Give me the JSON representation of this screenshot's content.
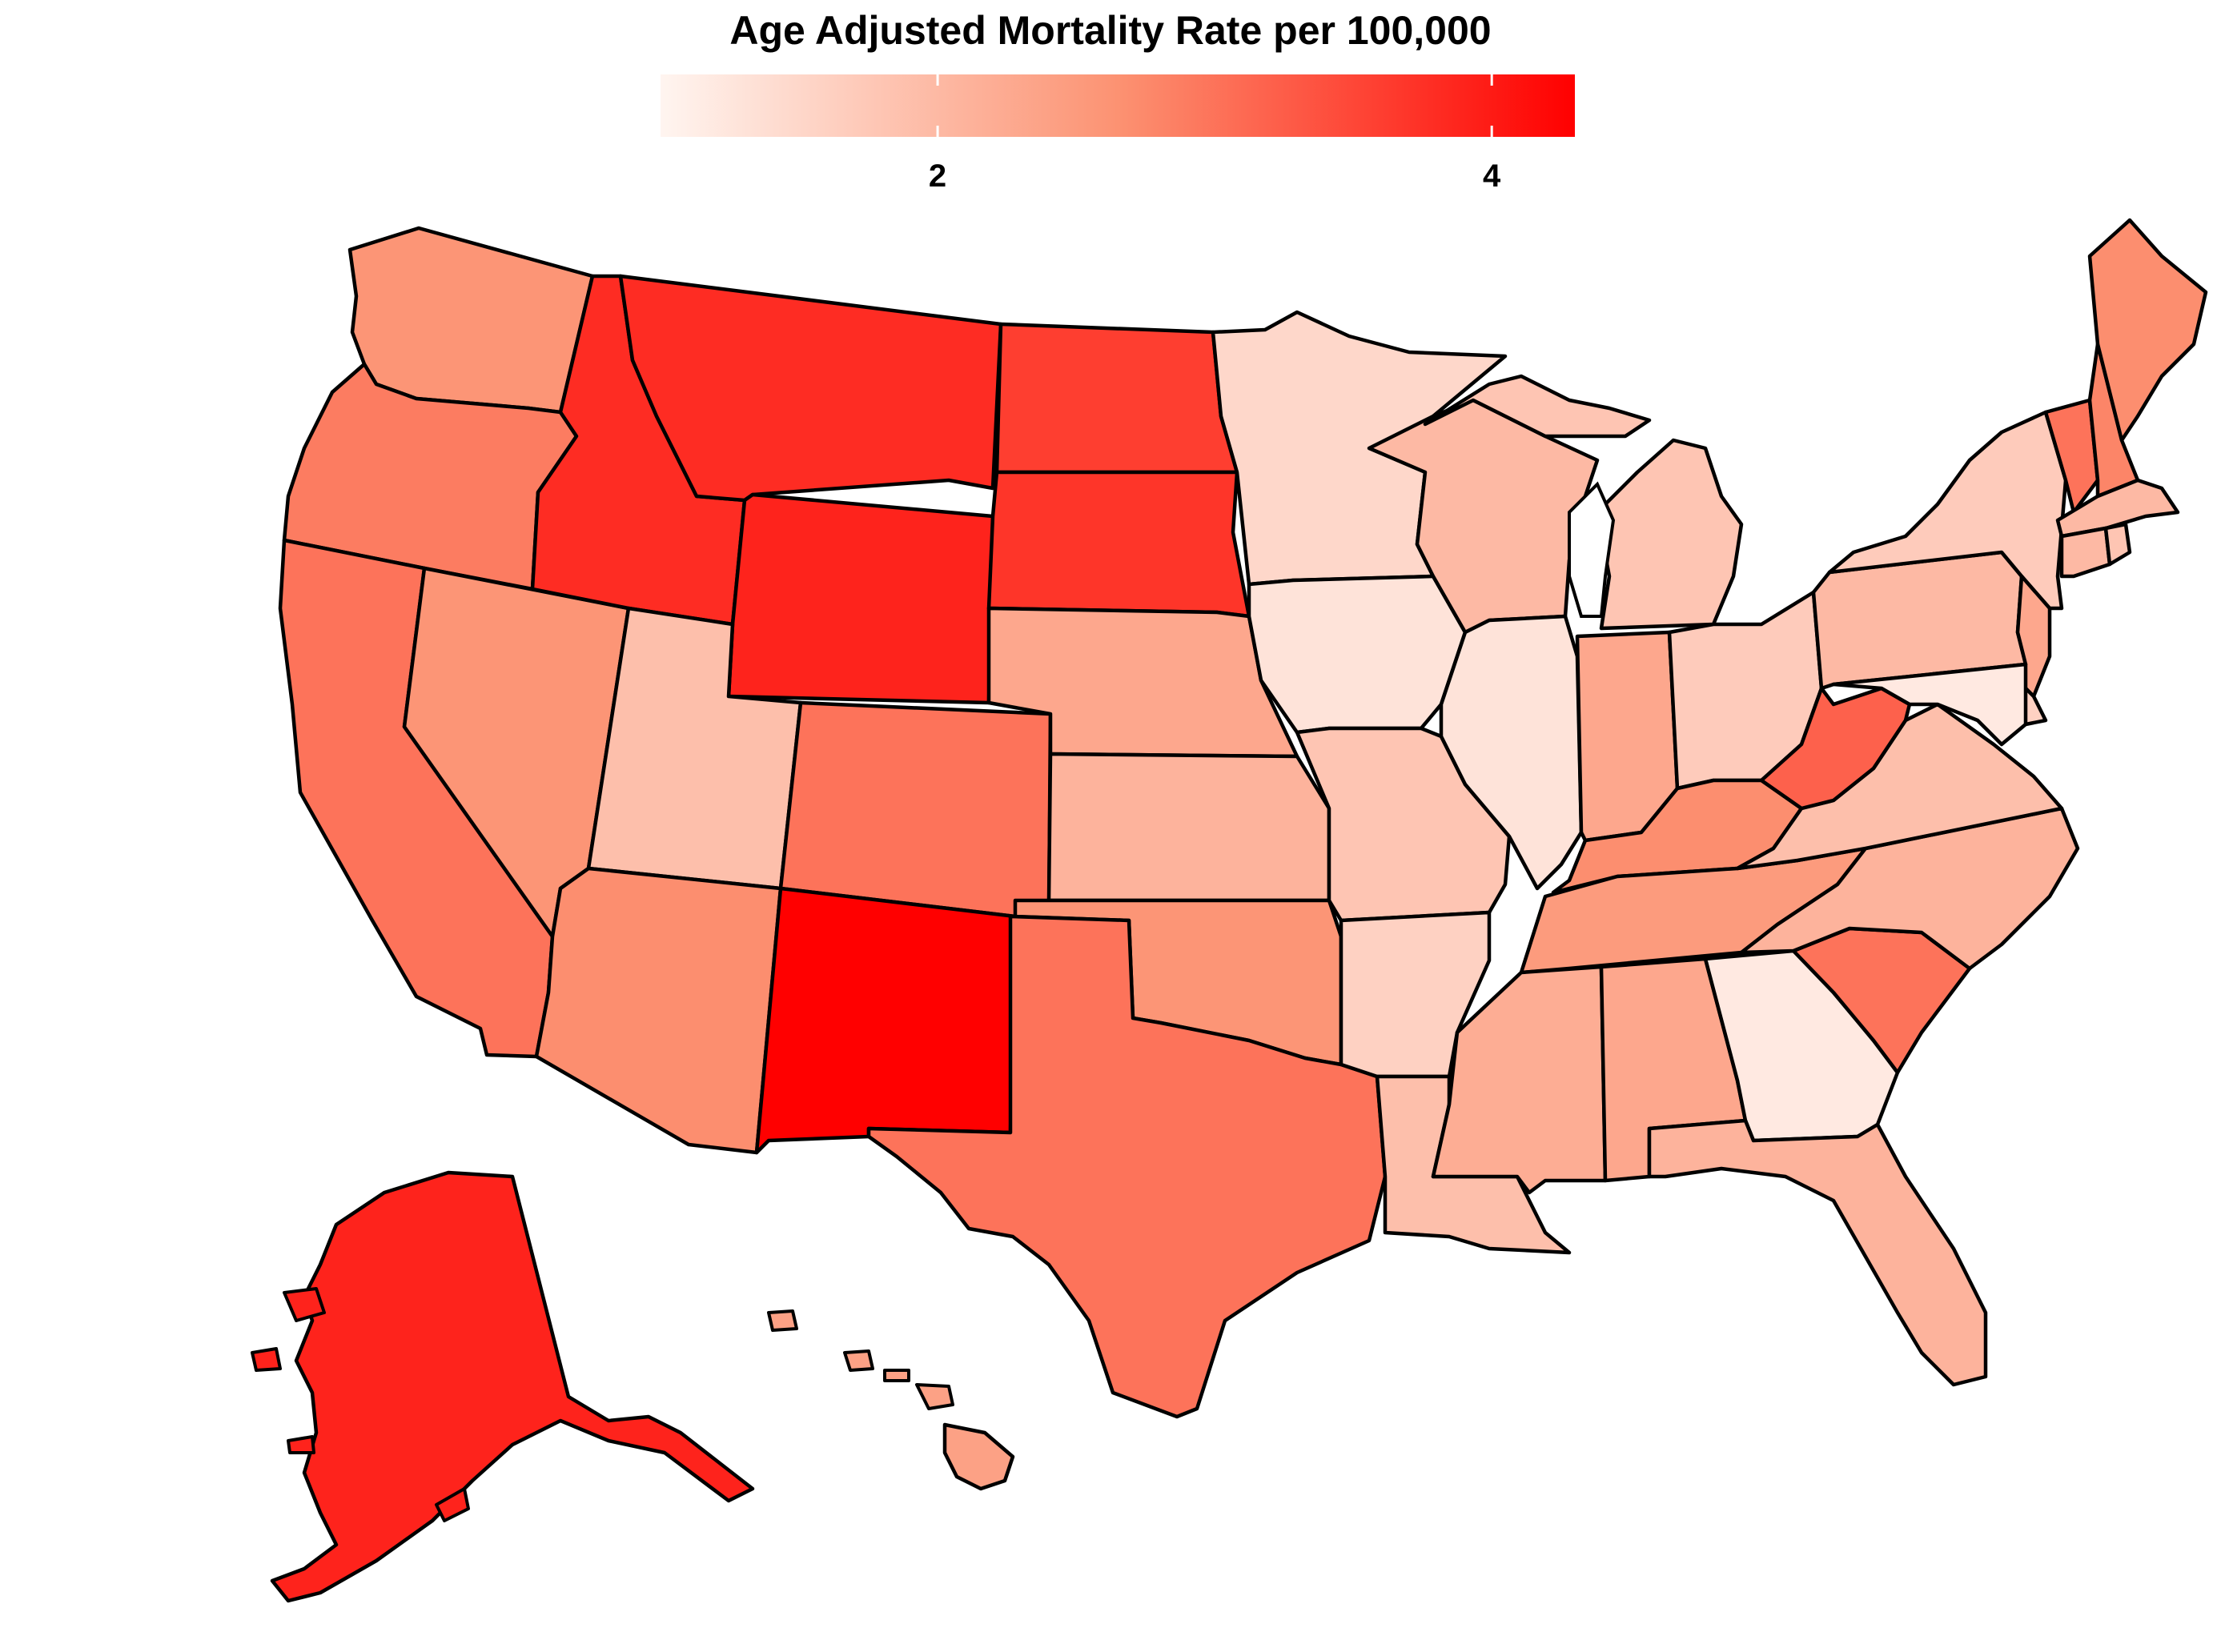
{
  "legend": {
    "title": "Age Adjusted Mortality Rate per 100,000",
    "min_value": 1.0,
    "max_value": 4.3,
    "color_low": "#fff5f0",
    "color_mid": "#fc9272",
    "color_high": "#ff0000",
    "ticks": [
      {
        "value": 2,
        "label": "2"
      },
      {
        "value": 4,
        "label": "4"
      }
    ]
  },
  "map_data": {
    "type": "choropleth",
    "region": "United States",
    "variable": "Age Adjusted Mortality Rate per 100,000",
    "states": [
      {
        "state": "Washington",
        "value": 2.6
      },
      {
        "state": "Oregon",
        "value": 2.9
      },
      {
        "state": "California",
        "value": 3.0
      },
      {
        "state": "Nevada",
        "value": 2.6
      },
      {
        "state": "Idaho",
        "value": 3.8
      },
      {
        "state": "Montana",
        "value": 3.8
      },
      {
        "state": "Wyoming",
        "value": 3.9
      },
      {
        "state": "Utah",
        "value": 1.9
      },
      {
        "state": "Arizona",
        "value": 2.7
      },
      {
        "state": "Colorado",
        "value": 3.0
      },
      {
        "state": "New Mexico",
        "value": 4.3
      },
      {
        "state": "North Dakota",
        "value": 3.6
      },
      {
        "state": "South Dakota",
        "value": 3.7
      },
      {
        "state": "Nebraska",
        "value": 2.3
      },
      {
        "state": "Kansas",
        "value": 2.1
      },
      {
        "state": "Oklahoma",
        "value": 2.6
      },
      {
        "state": "Texas",
        "value": 3.0
      },
      {
        "state": "Minnesota",
        "value": 1.5
      },
      {
        "state": "Iowa",
        "value": 1.3
      },
      {
        "state": "Missouri",
        "value": 1.8
      },
      {
        "state": "Arkansas",
        "value": 1.6
      },
      {
        "state": "Louisiana",
        "value": 1.9
      },
      {
        "state": "Wisconsin",
        "value": 2.0
      },
      {
        "state": "Illinois",
        "value": 1.3
      },
      {
        "state": "Michigan",
        "value": 1.8
      },
      {
        "state": "Indiana",
        "value": 2.3
      },
      {
        "state": "Ohio",
        "value": 1.7
      },
      {
        "state": "Kentucky",
        "value": 2.7
      },
      {
        "state": "Tennessee",
        "value": 2.5
      },
      {
        "state": "Mississippi",
        "value": 2.2
      },
      {
        "state": "Alabama",
        "value": 2.3
      },
      {
        "state": "Georgia",
        "value": 1.2
      },
      {
        "state": "Florida",
        "value": 2.1
      },
      {
        "state": "South Carolina",
        "value": 3.0
      },
      {
        "state": "North Carolina",
        "value": 2.1
      },
      {
        "state": "Virginia",
        "value": 1.9
      },
      {
        "state": "West Virginia",
        "value": 3.2
      },
      {
        "state": "Pennsylvania",
        "value": 2.0
      },
      {
        "state": "New York",
        "value": 1.7
      },
      {
        "state": "New Jersey",
        "value": 2.3
      },
      {
        "state": "Delaware",
        "value": 1.6
      },
      {
        "state": "Maryland",
        "value": 1.2
      },
      {
        "state": "Vermont",
        "value": 3.0
      },
      {
        "state": "New Hampshire",
        "value": 2.8
      },
      {
        "state": "Maine",
        "value": 2.7
      },
      {
        "state": "Massachusetts",
        "value": 2.0
      },
      {
        "state": "Connecticut",
        "value": 2.0
      },
      {
        "state": "Rhode Island",
        "value": 1.8
      },
      {
        "state": "Alaska",
        "value": 3.9
      },
      {
        "state": "Hawaii",
        "value": 2.4
      }
    ]
  }
}
